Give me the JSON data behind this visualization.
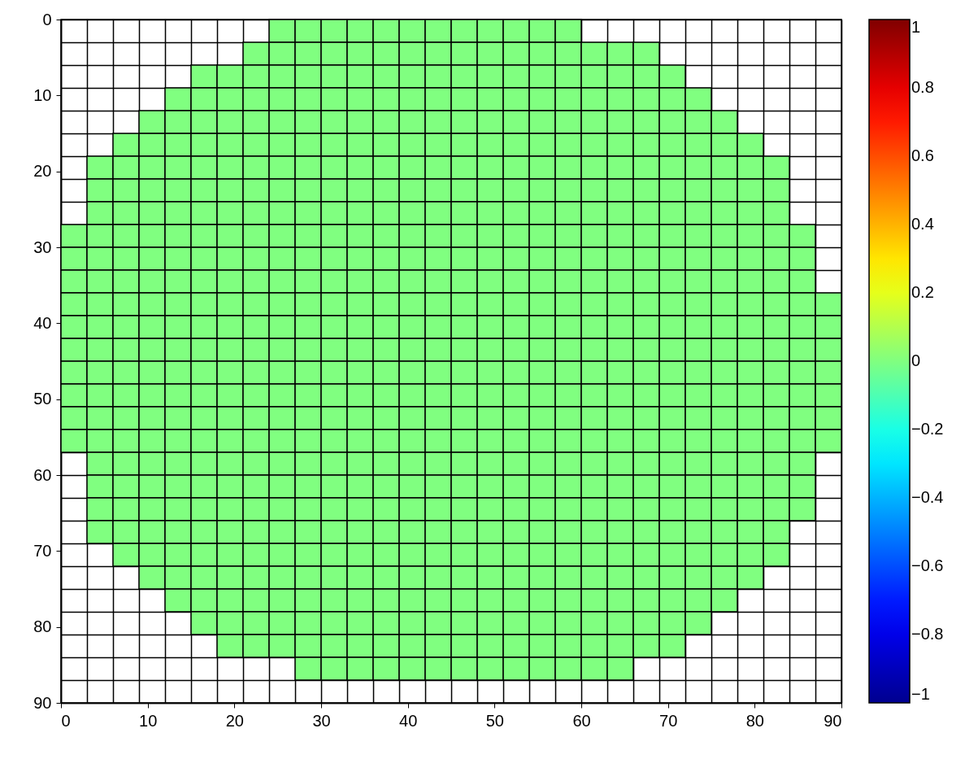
{
  "chart_data": {
    "type": "heatmap",
    "x": [
      1.5,
      4.5,
      7.5,
      10.5,
      13.5,
      16.5,
      19.5,
      22.5,
      25.5,
      28.5,
      31.5,
      34.5,
      37.5,
      40.5,
      43.5,
      46.5,
      49.5,
      52.5,
      55.5,
      58.5,
      61.5,
      64.5,
      67.5,
      70.5,
      73.5,
      76.5,
      79.5,
      82.5,
      85.5,
      88.5
    ],
    "y": [
      1.5,
      4.5,
      7.5,
      10.5,
      13.5,
      16.5,
      19.5,
      22.5,
      25.5,
      28.5,
      31.5,
      34.5,
      37.5,
      40.5,
      43.5,
      46.5,
      49.5,
      52.5,
      55.5,
      58.5,
      61.5,
      64.5,
      67.5,
      70.5,
      73.5,
      76.5,
      79.5,
      82.5,
      85.5
    ],
    "xlim": [
      0,
      90
    ],
    "xticks": [
      0,
      10,
      20,
      30,
      40,
      50,
      60,
      70,
      80,
      90
    ],
    "ylim": [
      90,
      0
    ],
    "yticks": [
      0,
      10,
      20,
      30,
      40,
      50,
      60,
      70,
      80,
      90
    ],
    "grid": true,
    "clim": [
      -1,
      1
    ],
    "cticks": [
      {
        "value": -1,
        "label": "−1"
      },
      {
        "value": -0.8,
        "label": "−0.8"
      },
      {
        "value": -0.6,
        "label": "−0.6"
      },
      {
        "value": -0.4,
        "label": "−0.4"
      },
      {
        "value": -0.2,
        "label": "−0.2"
      },
      0,
      0.2,
      0.4,
      0.6,
      0.8,
      1
    ],
    "cells": [
      [
        null,
        null,
        null,
        null,
        null,
        null,
        null,
        null,
        0,
        0,
        0,
        0,
        0,
        0,
        0,
        0,
        0,
        0,
        0,
        0,
        null,
        null,
        null,
        null,
        null,
        null,
        null,
        null,
        null,
        null
      ],
      [
        null,
        null,
        null,
        null,
        null,
        null,
        null,
        0,
        0,
        0,
        0,
        0,
        0,
        0,
        0,
        0,
        0,
        0,
        0,
        0,
        0,
        0,
        0,
        null,
        null,
        null,
        null,
        null,
        null,
        null
      ],
      [
        null,
        null,
        null,
        null,
        null,
        0,
        0,
        0,
        0,
        0,
        0,
        0,
        0,
        0,
        0,
        0,
        0,
        0,
        0,
        0,
        0,
        0,
        0,
        0,
        null,
        null,
        null,
        null,
        null,
        null
      ],
      [
        null,
        null,
        null,
        null,
        0,
        0,
        0,
        0,
        0,
        0,
        0,
        0,
        0,
        0,
        0,
        0,
        0,
        0,
        0,
        0,
        0,
        0,
        0,
        0,
        0,
        null,
        null,
        null,
        null,
        null
      ],
      [
        null,
        null,
        null,
        0,
        0,
        0,
        0,
        0,
        0,
        0,
        0,
        0,
        0,
        0,
        0,
        0,
        0,
        0,
        0,
        0,
        0,
        0,
        0,
        0,
        0,
        0,
        null,
        null,
        null,
        null
      ],
      [
        null,
        null,
        0,
        0,
        0,
        0,
        0,
        0,
        0,
        0,
        0,
        0,
        0,
        0,
        0,
        0,
        0,
        0,
        0,
        0,
        0,
        0,
        0,
        0,
        0,
        0,
        0,
        null,
        null,
        null
      ],
      [
        null,
        0,
        0,
        0,
        0,
        0,
        0,
        0,
        0,
        0,
        0,
        0,
        0,
        0,
        0,
        0,
        0,
        0,
        0,
        0,
        0,
        0,
        0,
        0,
        0,
        0,
        0,
        0,
        null,
        null
      ],
      [
        null,
        0,
        0,
        0,
        0,
        0,
        0,
        0,
        0,
        0,
        0,
        0,
        0,
        0,
        0,
        0,
        0,
        0,
        0,
        0,
        0,
        0,
        0,
        0,
        0,
        0,
        0,
        0,
        null,
        null
      ],
      [
        null,
        0,
        0,
        0,
        0,
        0,
        0,
        0,
        0,
        0,
        0,
        0,
        0,
        0,
        0,
        0,
        0,
        0,
        0,
        0,
        0,
        0,
        0,
        0,
        0,
        0,
        0,
        0,
        null,
        null
      ],
      [
        0,
        0,
        0,
        0,
        0,
        0,
        0,
        0,
        0,
        0,
        0,
        0,
        0,
        0,
        0,
        0,
        0,
        0,
        0,
        0,
        0,
        0,
        0,
        0,
        0,
        0,
        0,
        0,
        0,
        null
      ],
      [
        0,
        0,
        0,
        0,
        0,
        0,
        0,
        0,
        0,
        0,
        0,
        0,
        0,
        0,
        0,
        0,
        0,
        0,
        0,
        0,
        0,
        0,
        0,
        0,
        0,
        0,
        0,
        0,
        0,
        null
      ],
      [
        0,
        0,
        0,
        0,
        0,
        0,
        0,
        0,
        0,
        0,
        0,
        0,
        0,
        0,
        0,
        0,
        0,
        0,
        0,
        0,
        0,
        0,
        0,
        0,
        0,
        0,
        0,
        0,
        0,
        null
      ],
      [
        0,
        0,
        0,
        0,
        0,
        0,
        0,
        0,
        0,
        0,
        0,
        0,
        0,
        0,
        0,
        0,
        0,
        0,
        0,
        0,
        0,
        0,
        0,
        0,
        0,
        0,
        0,
        0,
        0,
        0
      ],
      [
        0,
        0,
        0,
        0,
        0,
        0,
        0,
        0,
        0,
        0,
        0,
        0,
        0,
        0,
        0,
        0,
        0,
        0,
        0,
        0,
        0,
        0,
        0,
        0,
        0,
        0,
        0,
        0,
        0,
        0
      ],
      [
        0,
        0,
        0,
        0,
        0,
        0,
        0,
        0,
        0,
        0,
        0,
        0,
        0,
        0,
        0,
        0,
        0,
        0,
        0,
        0,
        0,
        0,
        0,
        0,
        0,
        0,
        0,
        0,
        0,
        0
      ],
      [
        0,
        0,
        0,
        0,
        0,
        0,
        0,
        0,
        0,
        0,
        0,
        0,
        0,
        0,
        0,
        0,
        0,
        0,
        0,
        0,
        0,
        0,
        0,
        0,
        0,
        0,
        0,
        0,
        0,
        0
      ],
      [
        0,
        0,
        0,
        0,
        0,
        0,
        0,
        0,
        0,
        0,
        0,
        0,
        0,
        0,
        0,
        0,
        0,
        0,
        0,
        0,
        0,
        0,
        0,
        0,
        0,
        0,
        0,
        0,
        0,
        0
      ],
      [
        0,
        0,
        0,
        0,
        0,
        0,
        0,
        0,
        0,
        0,
        0,
        0,
        0,
        0,
        0,
        0,
        0,
        0,
        0,
        0,
        0,
        0,
        0,
        0,
        0,
        0,
        0,
        0,
        0,
        0
      ],
      [
        0,
        0,
        0,
        0,
        0,
        0,
        0,
        0,
        0,
        0,
        0,
        0,
        0,
        0,
        0,
        0,
        0,
        0,
        0,
        0,
        0,
        0,
        0,
        0,
        0,
        0,
        0,
        0,
        0,
        0
      ],
      [
        null,
        0,
        0,
        0,
        0,
        0,
        0,
        0,
        0,
        0,
        0,
        0,
        0,
        0,
        0,
        0,
        0,
        0,
        0,
        0,
        0,
        0,
        0,
        0,
        0,
        0,
        0,
        0,
        0,
        null
      ],
      [
        null,
        0,
        0,
        0,
        0,
        0,
        0,
        0,
        0,
        0,
        0,
        0,
        0,
        0,
        0,
        0,
        0,
        0,
        0,
        0,
        0,
        0,
        0,
        0,
        0,
        0,
        0,
        0,
        0,
        null
      ],
      [
        null,
        0,
        0,
        0,
        0,
        0,
        0,
        0,
        0,
        0,
        0,
        0,
        0,
        0,
        0,
        0,
        0,
        0,
        0,
        0,
        0,
        0,
        0,
        0,
        0,
        0,
        0,
        0,
        0,
        null
      ],
      [
        null,
        0,
        0,
        0,
        0,
        0,
        0,
        0,
        0,
        0,
        0,
        0,
        0,
        0,
        0,
        0,
        0,
        0,
        0,
        0,
        0,
        0,
        0,
        0,
        0,
        0,
        0,
        0,
        null,
        null
      ],
      [
        null,
        null,
        0,
        0,
        0,
        0,
        0,
        0,
        0,
        0,
        0,
        0,
        0,
        0,
        0,
        0,
        0,
        0,
        0,
        0,
        0,
        0,
        0,
        0,
        0,
        0,
        0,
        0,
        null,
        null
      ],
      [
        null,
        null,
        null,
        0,
        0,
        0,
        0,
        0,
        0,
        0,
        0,
        0,
        0,
        0,
        0,
        0,
        0,
        0,
        0,
        0,
        0,
        0,
        0,
        0,
        0,
        0,
        0,
        null,
        null,
        null
      ],
      [
        null,
        null,
        null,
        null,
        0,
        0,
        0,
        0,
        0,
        0,
        0,
        0,
        0,
        0,
        0,
        0,
        0,
        0,
        0,
        0,
        0,
        0,
        0,
        0,
        0,
        0,
        null,
        null,
        null,
        null
      ],
      [
        null,
        null,
        null,
        null,
        null,
        0,
        0,
        0,
        0,
        0,
        0,
        0,
        0,
        0,
        0,
        0,
        0,
        0,
        0,
        0,
        0,
        0,
        0,
        0,
        0,
        null,
        null,
        null,
        null,
        null
      ],
      [
        null,
        null,
        null,
        null,
        null,
        null,
        0,
        0,
        0,
        0,
        0,
        0,
        0,
        0,
        0,
        0,
        0,
        0,
        0,
        0,
        0,
        0,
        0,
        0,
        null,
        null,
        null,
        null,
        null,
        null
      ],
      [
        null,
        null,
        null,
        null,
        null,
        null,
        null,
        null,
        null,
        0,
        0,
        0,
        0,
        0,
        0,
        0,
        0,
        0,
        0,
        0,
        0,
        0,
        null,
        null,
        null,
        null,
        null,
        null,
        null,
        null
      ]
    ]
  }
}
